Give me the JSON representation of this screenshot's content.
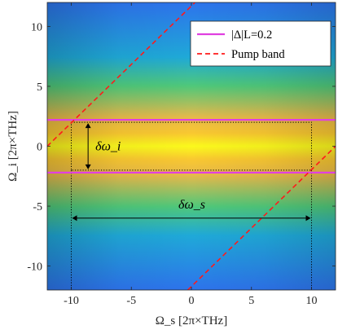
{
  "chart_data": {
    "type": "heatmap",
    "title": "",
    "xlabel": "Ω_s [2π×THz]",
    "ylabel": "Ω_i [2π×THz]",
    "xlim": [
      -12,
      12
    ],
    "ylim": [
      -12,
      12
    ],
    "xticks": [
      -10,
      -5,
      0,
      5,
      10
    ],
    "yticks": [
      -10,
      -5,
      0,
      5,
      10
    ],
    "xtick_labels": [
      "-10",
      "-5",
      "0",
      "5",
      "10"
    ],
    "ytick_labels": [
      "-10",
      "-5",
      "0",
      "5",
      "10"
    ],
    "grid": false,
    "legend_position": "top-right",
    "heatmap": {
      "description_free_colormap": "parula",
      "peak_y": 0,
      "colors": [
        "#fbf91c",
        "#f9c830",
        "#e7b94a",
        "#4fc87a",
        "#1fa9d8",
        "#2d73ec"
      ]
    },
    "series": [
      {
        "name": "|Δ|L=0.2",
        "kind": "contour",
        "color": "#e040e0",
        "y_levels": [
          2.2,
          -2.2
        ]
      },
      {
        "name": "Pump band",
        "kind": "dashed",
        "color": "#ff1a1a",
        "lines": [
          {
            "x": [
              -12,
              0.3
            ],
            "y": [
              0,
              12
            ]
          },
          {
            "x": [
              -0.3,
              12
            ],
            "y": [
              -12,
              0
            ]
          }
        ]
      }
    ],
    "legend_labels": [
      "|Δ|L=0.2",
      "Pump band"
    ],
    "annotations": [
      {
        "text": "δω_i",
        "x": -10,
        "y_range": [
          -2,
          2
        ]
      },
      {
        "text": "δω_s",
        "y": -6,
        "x_range": [
          -10,
          10
        ]
      }
    ],
    "dotted_box": {
      "x": [
        -10,
        10
      ],
      "y": [
        -2,
        2
      ]
    }
  }
}
